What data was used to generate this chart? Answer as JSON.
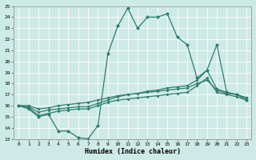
{
  "xlabel": "Humidex (Indice chaleur)",
  "x": [
    0,
    1,
    2,
    3,
    4,
    5,
    6,
    7,
    8,
    9,
    10,
    11,
    12,
    13,
    14,
    15,
    16,
    17,
    18,
    19,
    20,
    21,
    22,
    23
  ],
  "line1": [
    16,
    15.7,
    15.0,
    15.2,
    13.7,
    13.7,
    13.1,
    13.0,
    14.2,
    20.7,
    23.2,
    24.8,
    23.0,
    24.0,
    24.0,
    24.3,
    22.2,
    21.5,
    18.5,
    19.2,
    21.5,
    17.2,
    17.0,
    16.5
  ],
  "line2": [
    16,
    15.8,
    15.1,
    15.3,
    15.5,
    15.6,
    15.7,
    15.7,
    16.0,
    16.3,
    16.5,
    16.6,
    16.7,
    16.8,
    16.9,
    17.0,
    17.1,
    17.2,
    17.8,
    18.5,
    17.2,
    17.0,
    16.8,
    16.5
  ],
  "line3": [
    16,
    15.9,
    15.4,
    15.6,
    15.7,
    15.8,
    15.9,
    15.9,
    16.2,
    16.5,
    16.8,
    17.0,
    17.1,
    17.3,
    17.4,
    17.6,
    17.7,
    17.8,
    18.3,
    19.2,
    17.5,
    17.2,
    17.0,
    16.7
  ],
  "line4": [
    16,
    16.0,
    15.7,
    15.8,
    16.0,
    16.1,
    16.2,
    16.3,
    16.5,
    16.7,
    16.9,
    17.0,
    17.1,
    17.2,
    17.3,
    17.4,
    17.5,
    17.6,
    18.0,
    18.3,
    17.4,
    17.1,
    17.0,
    16.7
  ],
  "color": "#2d7d6e",
  "bg_color": "#ceeae6",
  "grid_color": "#b0d8d2",
  "ylim": [
    13,
    25
  ],
  "xlim": [
    -0.5,
    23.5
  ],
  "yticks": [
    13,
    14,
    15,
    16,
    17,
    18,
    19,
    20,
    21,
    22,
    23,
    24,
    25
  ],
  "xticks": [
    0,
    1,
    2,
    3,
    4,
    5,
    6,
    7,
    8,
    9,
    10,
    11,
    12,
    13,
    14,
    15,
    16,
    17,
    18,
    19,
    20,
    21,
    22,
    23
  ]
}
